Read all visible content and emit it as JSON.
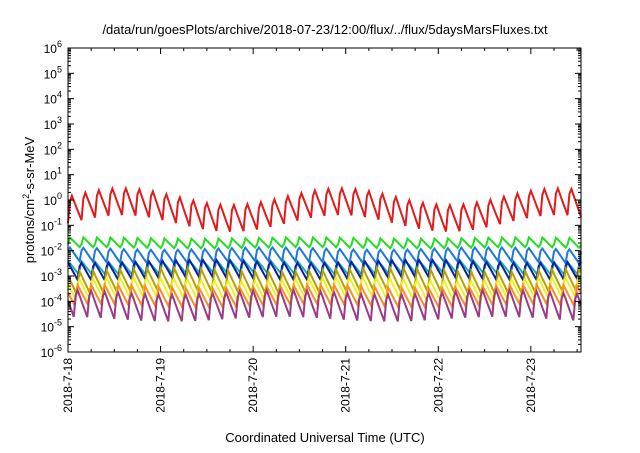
{
  "chart_data": {
    "type": "line",
    "title": "/data/run/goesPlots/archive/2018-07-23/12:00/flux/../flux/5daysMarsFluxes.txt",
    "xlabel": "Coordinated Universal Time (UTC)",
    "ylabel_parts": {
      "pre": "protons/cm",
      "sup": "2",
      "post": "-s-sr-MeV"
    },
    "x_scale": "date",
    "xlim": [
      "2018-07-18T00:00",
      "2018-07-23T13:00"
    ],
    "x_ticks": [
      "2018-7-18",
      "2018-7-19",
      "2018-7-20",
      "2018-7-21",
      "2018-7-22",
      "2018-7-23"
    ],
    "y_scale": "log",
    "ylim": [
      1e-06,
      1000000.0
    ],
    "y_ticks": [
      {
        "base": "10",
        "exp": "-6"
      },
      {
        "base": "10",
        "exp": "-5"
      },
      {
        "base": "10",
        "exp": "-4"
      },
      {
        "base": "10",
        "exp": "-3"
      },
      {
        "base": "10",
        "exp": "-2"
      },
      {
        "base": "10",
        "exp": "-1"
      },
      {
        "base": "10",
        "exp": "0"
      },
      {
        "base": "10",
        "exp": "1"
      },
      {
        "base": "10",
        "exp": "2"
      },
      {
        "base": "10",
        "exp": "3"
      },
      {
        "base": "10",
        "exp": "4"
      },
      {
        "base": "10",
        "exp": "5"
      },
      {
        "base": "10",
        "exp": "6"
      }
    ],
    "grid": false,
    "legend": "none",
    "series": [
      {
        "color": "#e31a1c",
        "low": 0.12,
        "high": 1.8,
        "cycle_hours": 3.5,
        "drift": 0.7
      },
      {
        "color": "#22dd22",
        "low": 0.012,
        "high": 0.032,
        "cycle_hours": 3.5,
        "drift": 0.15
      },
      {
        "color": "#1f78d8",
        "low": 0.0035,
        "high": 0.014,
        "cycle_hours": 3.5,
        "drift": 0.2
      },
      {
        "color": "#20b2aa",
        "low": 0.0012,
        "high": 0.004,
        "cycle_hours": 3.5,
        "drift": 0.2
      },
      {
        "color": "#0a1fa8",
        "low": 0.0008,
        "high": 0.0045,
        "cycle_hours": 3.5,
        "drift": 0.2
      },
      {
        "color": "#b8a000",
        "low": 0.00022,
        "high": 0.0018,
        "cycle_hours": 3.5,
        "drift": 0.2
      },
      {
        "color": "#f0f020",
        "low": 0.00012,
        "high": 0.0009,
        "cycle_hours": 3.5,
        "drift": 0.2
      },
      {
        "color": "#ff8c1a",
        "low": 6e-05,
        "high": 0.0004,
        "cycle_hours": 3.5,
        "drift": 0.2
      },
      {
        "color": "#9b3a85",
        "low": 2e-05,
        "high": 0.0003,
        "cycle_hours": 3.5,
        "drift": 0.2
      }
    ]
  }
}
